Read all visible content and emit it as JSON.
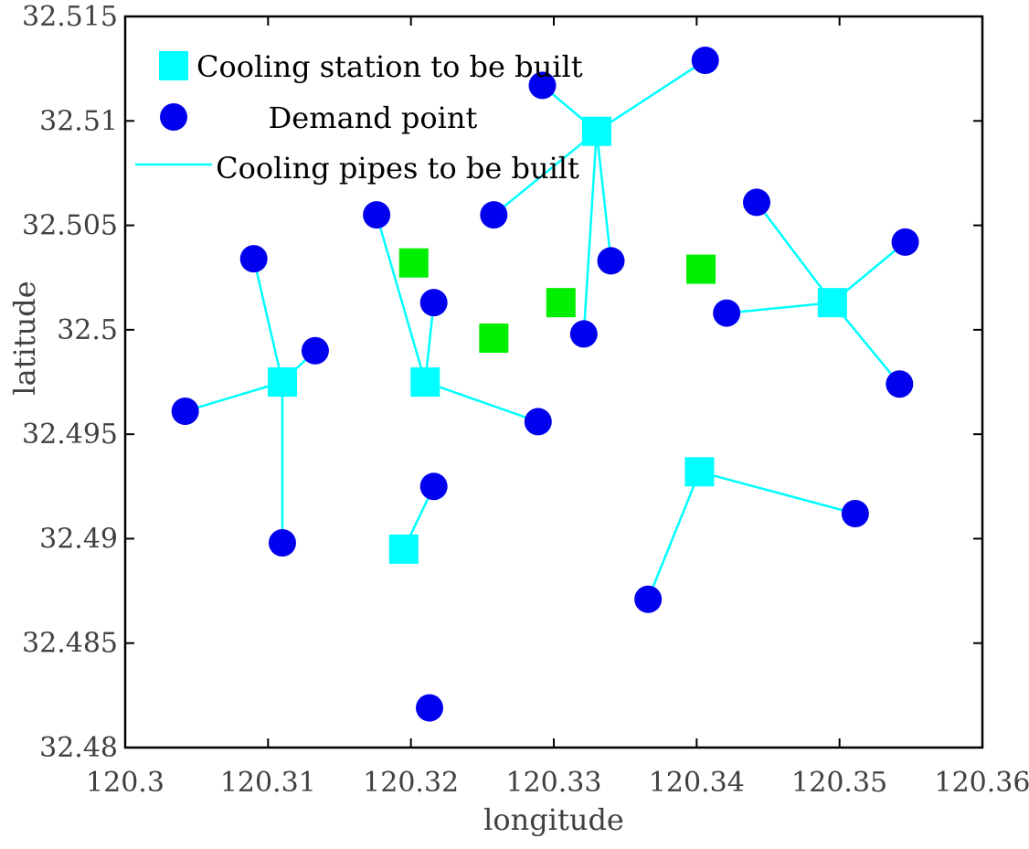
{
  "chart_data": {
    "type": "scatter",
    "title": "",
    "xlabel": "longitude",
    "ylabel": "latitude",
    "xlim": [
      120.3,
      120.36
    ],
    "ylim": [
      32.48,
      32.515
    ],
    "xticks": [
      120.3,
      120.31,
      120.32,
      120.33,
      120.34,
      120.35,
      120.36
    ],
    "yticks": [
      32.48,
      32.485,
      32.49,
      32.495,
      32.5,
      32.505,
      32.51,
      32.515
    ],
    "xtick_labels": [
      "120.3",
      "120.31",
      "120.32",
      "120.33",
      "120.34",
      "120.35",
      "120.36"
    ],
    "ytick_labels": [
      "32.48",
      "32.485",
      "32.49",
      "32.495",
      "32.5",
      "32.505",
      "32.51",
      "32.515"
    ],
    "grid": false,
    "legend_position": "top-left",
    "colors": {
      "station": "#00ffff",
      "demand": "#0000ee",
      "candidate": "#00ee00",
      "pipe": "#00ffff",
      "axis": "#000000"
    },
    "legend": [
      {
        "label": "Cooling station to be built",
        "marker": "square",
        "color": "#00ffff"
      },
      {
        "label": "Demand point",
        "marker": "circle",
        "color": "#0000ee"
      },
      {
        "label": "Cooling pipes to be built",
        "marker": "line",
        "color": "#00ffff"
      }
    ],
    "stations": [
      {
        "x": 120.311,
        "y": 32.4975
      },
      {
        "x": 120.321,
        "y": 32.4975
      },
      {
        "x": 120.3195,
        "y": 32.4895
      },
      {
        "x": 120.333,
        "y": 32.5095
      },
      {
        "x": 120.3495,
        "y": 32.5013
      },
      {
        "x": 120.3402,
        "y": 32.4932
      }
    ],
    "candidate_sites": [
      {
        "x": 120.3202,
        "y": 32.5032
      },
      {
        "x": 120.3258,
        "y": 32.4996
      },
      {
        "x": 120.3305,
        "y": 32.5013
      },
      {
        "x": 120.3403,
        "y": 32.5029
      }
    ],
    "demand_points": [
      {
        "x": 120.3042,
        "y": 32.4961,
        "station": 0
      },
      {
        "x": 120.309,
        "y": 32.5034,
        "station": 0
      },
      {
        "x": 120.3133,
        "y": 32.499,
        "station": 0
      },
      {
        "x": 120.311,
        "y": 32.4898,
        "station": 0
      },
      {
        "x": 120.3176,
        "y": 32.5055,
        "station": 1
      },
      {
        "x": 120.3216,
        "y": 32.5013,
        "station": 1
      },
      {
        "x": 120.3289,
        "y": 32.4956,
        "station": 1
      },
      {
        "x": 120.3216,
        "y": 32.4925,
        "station": 2
      },
      {
        "x": 120.3292,
        "y": 32.5117,
        "station": 3
      },
      {
        "x": 120.3406,
        "y": 32.5129,
        "station": 3
      },
      {
        "x": 120.3258,
        "y": 32.5055,
        "station": 3
      },
      {
        "x": 120.334,
        "y": 32.5033,
        "station": 3
      },
      {
        "x": 120.3321,
        "y": 32.4998,
        "station": 3
      },
      {
        "x": 120.3442,
        "y": 32.5061,
        "station": 4
      },
      {
        "x": 120.3546,
        "y": 32.5042,
        "station": 4
      },
      {
        "x": 120.3421,
        "y": 32.5008,
        "station": 4
      },
      {
        "x": 120.3542,
        "y": 32.4974,
        "station": 4
      },
      {
        "x": 120.3511,
        "y": 32.4912,
        "station": 5
      },
      {
        "x": 120.3366,
        "y": 32.4871,
        "station": 5
      },
      {
        "x": 120.3213,
        "y": 32.4819,
        "station": null
      }
    ]
  }
}
